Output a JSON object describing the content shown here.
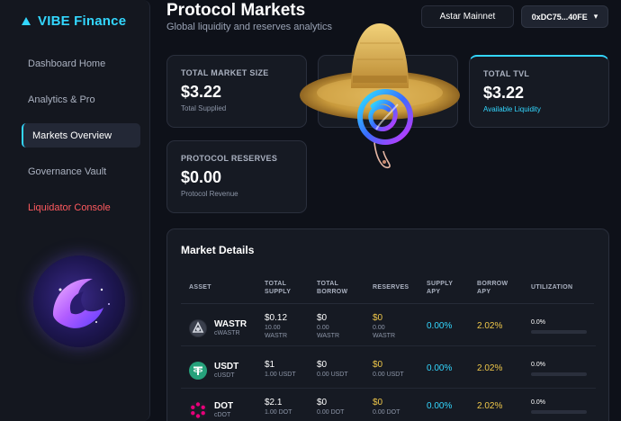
{
  "brand": {
    "name": "VIBE Finance"
  },
  "nav": [
    {
      "label": "Dashboard Home"
    },
    {
      "label": "Analytics & Pro"
    },
    {
      "label": "Markets Overview"
    },
    {
      "label": "Governance Vault"
    },
    {
      "label": "Liquidator Console"
    }
  ],
  "header": {
    "title": "Protocol Markets",
    "subtitle": "Global liquidity and reserves analytics",
    "network": "Astar Mainnet",
    "wallet": "0xDC75...40FE",
    "wallet_caret": "▾"
  },
  "stats": {
    "market_size": {
      "label": "TOTAL MARKET SIZE",
      "value": "$3.22",
      "sub": "Total Supplied"
    },
    "tvl": {
      "label": "TOTAL TVL",
      "value": "$3.22",
      "sub": "Available Liquidity"
    },
    "reserves": {
      "label": "PROTOCOL RESERVES",
      "value": "$0.00",
      "sub": "Protocol Revenue"
    }
  },
  "market": {
    "title": "Market Details",
    "columns": {
      "asset": "ASSET",
      "supply_1": "TOTAL",
      "supply_2": "SUPPLY",
      "borrow_1": "TOTAL",
      "borrow_2": "BORROW",
      "reserves": "RESERVES",
      "supply_apy_1": "SUPPLY",
      "supply_apy_2": "APY",
      "borrow_apy_1": "BORROW",
      "borrow_apy_2": "APY",
      "utilization": "UTILIZATION"
    },
    "rows": [
      {
        "asset": "WASTR",
        "ctoken": "cWASTR",
        "supply": "$0.12",
        "supply_sub_1": "10.00",
        "supply_sub_2": "WASTR",
        "borrow": "$0",
        "borrow_sub_1": "0.00",
        "borrow_sub_2": "WASTR",
        "reserves": "$0",
        "reserves_sub_1": "0.00",
        "reserves_sub_2": "WASTR",
        "supply_apy": "0.00%",
        "borrow_apy": "2.02%",
        "utilization": "0.0%",
        "util_pct": 0
      },
      {
        "asset": "USDT",
        "ctoken": "cUSDT",
        "supply": "$1",
        "supply_sub_1": "1.00 USDT",
        "supply_sub_2": "",
        "borrow": "$0",
        "borrow_sub_1": "0.00 USDT",
        "borrow_sub_2": "",
        "reserves": "$0",
        "reserves_sub_1": "0.00 USDT",
        "reserves_sub_2": "",
        "supply_apy": "0.00%",
        "borrow_apy": "2.02%",
        "utilization": "0.0%",
        "util_pct": 0
      },
      {
        "asset": "DOT",
        "ctoken": "cDOT",
        "supply": "$2.1",
        "supply_sub_1": "1.00 DOT",
        "supply_sub_2": "",
        "borrow": "$0",
        "borrow_sub_1": "0.00 DOT",
        "borrow_sub_2": "",
        "reserves": "$0",
        "reserves_sub_1": "0.00 DOT",
        "reserves_sub_2": "",
        "supply_apy": "0.00%",
        "borrow_apy": "2.02%",
        "utilization": "0.0%",
        "util_pct": 0
      }
    ]
  },
  "icons": {
    "brand": "triangle-icon",
    "wastr": "astar-token-icon",
    "usdt": "tether-token-icon",
    "dot": "polkadot-token-icon"
  },
  "colors": {
    "accent": "#33d7ff",
    "danger": "#ff5a5f",
    "warning": "#f0c84a",
    "background": "#0e1119",
    "card": "#161a23"
  }
}
